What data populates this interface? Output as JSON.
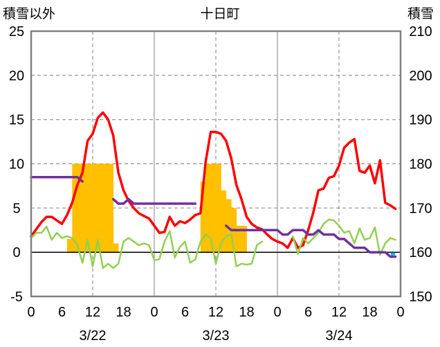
{
  "chart_data": {
    "type": "line",
    "title": "十日町",
    "left_axis_label": "積雪以外",
    "right_axis_label": "積雪",
    "ylim": [
      -5,
      25
    ],
    "yticks": [
      -5,
      0,
      5,
      10,
      15,
      20,
      25
    ],
    "y2lim": [
      150,
      210
    ],
    "y2ticks": [
      150,
      160,
      170,
      180,
      190,
      200,
      210
    ],
    "xlim": [
      0,
      72
    ],
    "xticks": [
      0,
      6,
      12,
      18,
      24,
      30,
      36,
      42,
      48,
      54,
      60,
      66,
      72
    ],
    "xtick_labels": [
      "0",
      "6",
      "12",
      "18",
      "0",
      "6",
      "12",
      "18",
      "0",
      "6",
      "12",
      "18",
      "0"
    ],
    "dates": [
      {
        "label": "3/22",
        "x": 12
      },
      {
        "label": "3/23",
        "x": 36
      },
      {
        "label": "3/24",
        "x": 60
      }
    ],
    "grid": true,
    "colors": {
      "temperature": "#ff0000",
      "dewpoint": "#92d050",
      "snow_depth": "#7030a0",
      "snowfall": "#ffc000",
      "marker": "#00b0f0",
      "axis": "#808080",
      "grid": "#808080",
      "zero": "#000000"
    },
    "snowfall_bars": {
      "x": [
        7,
        8,
        9,
        10,
        11,
        12,
        13,
        14,
        15,
        16,
        33,
        34,
        35,
        36,
        37,
        38,
        39,
        40,
        41
      ],
      "values": [
        1.5,
        10,
        10,
        10,
        10,
        10,
        10,
        10,
        10,
        1,
        8,
        10,
        10,
        10,
        7,
        6,
        5,
        3,
        3
      ]
    },
    "series": [
      {
        "key": "temperature",
        "axis": "left",
        "x": [
          0,
          1,
          2,
          3,
          4,
          5,
          6,
          7,
          8,
          9,
          10,
          11,
          12,
          13,
          14,
          15,
          16,
          17,
          18,
          19,
          20,
          21,
          22,
          23,
          24,
          25,
          26,
          27,
          28,
          29,
          30,
          31,
          32,
          33,
          34,
          35,
          36,
          37,
          38,
          39,
          40,
          41,
          42,
          43,
          44,
          45,
          46,
          47,
          48,
          49,
          50,
          51,
          52,
          53,
          54,
          55,
          56,
          57,
          58,
          59,
          60,
          61,
          62,
          63,
          64,
          65,
          66,
          67,
          68,
          69,
          70,
          71
        ],
        "values": [
          1.8,
          2.6,
          3.4,
          4.0,
          4.0,
          3.6,
          3.2,
          4.2,
          5.6,
          7.6,
          9.0,
          12.6,
          13.4,
          15.2,
          15.8,
          15.0,
          13.2,
          9.0,
          7.0,
          5.8,
          5.0,
          4.4,
          4.1,
          3.8,
          3.0,
          2.2,
          2.3,
          4.0,
          3.0,
          3.5,
          3.3,
          3.7,
          4.2,
          4.4,
          10.2,
          13.6,
          13.6,
          13.4,
          12.6,
          10.6,
          7.6,
          6.0,
          4.0,
          3.2,
          2.8,
          2.6,
          2.0,
          1.5,
          1.2,
          1.0,
          0.5,
          1.6,
          0.5,
          0.8,
          2.5,
          4.5,
          7.0,
          7.2,
          8.4,
          8.6,
          9.8,
          11.8,
          12.4,
          12.8,
          9.2,
          9.0,
          9.8,
          7.8,
          10.4,
          5.6,
          5.3,
          4.9
        ]
      },
      {
        "key": "dewpoint",
        "axis": "left",
        "segments": [
          {
            "x": [
              0,
              1,
              2,
              3,
              4,
              5,
              6,
              7,
              8,
              9,
              10,
              11,
              12,
              13,
              14,
              15,
              16,
              17,
              18,
              19,
              20,
              21,
              22,
              23,
              24,
              25,
              26,
              27,
              28,
              29,
              30,
              31,
              32,
              33,
              34,
              35,
              36,
              37,
              38,
              39,
              40,
              41,
              42,
              43,
              44,
              45
            ],
            "values": [
              1.6,
              2.2,
              2.2,
              2.9,
              1.4,
              2.2,
              1.6,
              1.8,
              1.6,
              0.8,
              -1.2,
              1.4,
              -1.6,
              1.4,
              -1.8,
              -1.3,
              -1.8,
              -1.3,
              1.2,
              1.6,
              1.2,
              0.8,
              1.0,
              0.8,
              -0.9,
              -0.8,
              1.2,
              2.4,
              -0.6,
              0.6,
              1.2,
              -1.2,
              -0.8,
              1.2,
              2.0,
              1.6,
              -1.3,
              1.0,
              1.8,
              2.0,
              -1.6,
              -1.3,
              -1.4,
              -1.3,
              0.8,
              1.2
            ]
          },
          {
            "x": [
              51,
              52,
              53,
              54,
              55,
              56,
              57,
              58,
              59,
              60,
              61,
              62,
              63,
              64,
              65,
              66,
              67,
              68,
              69,
              70,
              71
            ],
            "values": [
              1.8,
              -0.2,
              1.6,
              1.0,
              1.6,
              2.2,
              3.2,
              3.7,
              3.6,
              3.0,
              2.2,
              2.4,
              1.0,
              2.7,
              1.4,
              1.6,
              2.8,
              -0.3,
              1.0,
              1.6,
              1.4
            ]
          }
        ]
      },
      {
        "key": "snow_depth",
        "axis": "right",
        "segments": [
          {
            "x": [
              0,
              1,
              2,
              3,
              4,
              5,
              6,
              7,
              8,
              9,
              10
            ],
            "values": [
              177,
              177,
              177,
              177,
              177,
              177,
              177,
              177,
              177,
              177,
              176
            ]
          },
          {
            "x": [
              16,
              17,
              18,
              19,
              20,
              21,
              22,
              23,
              24,
              25,
              26,
              27,
              28,
              29,
              30,
              31,
              32
            ],
            "values": [
              172,
              171,
              171,
              172,
              171,
              171,
              171,
              171,
              171,
              171,
              171,
              171,
              171,
              171,
              171,
              171,
              171
            ]
          },
          {
            "x": [
              38,
              39,
              40,
              41,
              42,
              43,
              44,
              45,
              46,
              47,
              48,
              49,
              50,
              51,
              52,
              53,
              54,
              55,
              56,
              57,
              58,
              59,
              60,
              61,
              62,
              63,
              64,
              65,
              66,
              67,
              68,
              69,
              70,
              71
            ],
            "values": [
              166,
              165,
              165,
              165,
              165,
              165,
              165,
              165,
              165,
              165,
              165,
              164,
              164,
              165,
              165,
              165,
              164,
              164,
              165,
              164,
              164,
              164,
              163,
              163,
              162,
              161,
              161,
              161,
              160,
              160,
              160,
              160,
              159,
              159
            ]
          }
        ]
      }
    ],
    "marker": {
      "x": 70.5,
      "value": -0.2
    }
  }
}
